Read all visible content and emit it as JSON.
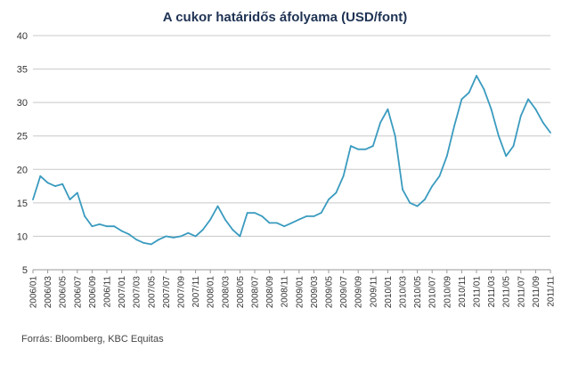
{
  "chart_data": {
    "type": "line",
    "title": "A cukor határidős áfolyama (USD/font)",
    "source": "Forrás: Bloomberg,  KBC Equitas",
    "ylim": [
      5,
      40
    ],
    "yticks": [
      5,
      10,
      15,
      20,
      25,
      30,
      35,
      40
    ],
    "grid": "horizontal",
    "line_color": "#3a9bbf",
    "xticks": [
      "2006/01",
      "2006/03",
      "2006/05",
      "2006/07",
      "2006/09",
      "2006/11",
      "2007/01",
      "2007/03",
      "2007/05",
      "2007/07",
      "2007/09",
      "2007/11",
      "2008/01",
      "2008/03",
      "2008/05",
      "2008/07",
      "2008/09",
      "2008/11",
      "2009/01",
      "2009/03",
      "2009/05",
      "2009/07",
      "2009/09",
      "2009/11",
      "2010/01",
      "2010/03",
      "2010/05",
      "2010/07",
      "2010/09",
      "2010/11",
      "2011/01",
      "2011/03",
      "2011/05",
      "2011/07",
      "2011/09",
      "2011/11"
    ],
    "series": [
      {
        "x": [
          "2006/01",
          "2006/02",
          "2006/03",
          "2006/04",
          "2006/05",
          "2006/06",
          "2006/07",
          "2006/08",
          "2006/09",
          "2006/10",
          "2006/11",
          "2006/12",
          "2007/01",
          "2007/02",
          "2007/03",
          "2007/04",
          "2007/05",
          "2007/06",
          "2007/07",
          "2007/08",
          "2007/09",
          "2007/10",
          "2007/11",
          "2007/12",
          "2008/01",
          "2008/02",
          "2008/03",
          "2008/04",
          "2008/05",
          "2008/06",
          "2008/07",
          "2008/08",
          "2008/09",
          "2008/10",
          "2008/11",
          "2008/12",
          "2009/01",
          "2009/02",
          "2009/03",
          "2009/04",
          "2009/05",
          "2009/06",
          "2009/07",
          "2009/08",
          "2009/09",
          "2009/10",
          "2009/11",
          "2009/12",
          "2010/01",
          "2010/02",
          "2010/03",
          "2010/04",
          "2010/05",
          "2010/06",
          "2010/07",
          "2010/08",
          "2010/09",
          "2010/10",
          "2010/11",
          "2010/12",
          "2011/01",
          "2011/02",
          "2011/03",
          "2011/04",
          "2011/05",
          "2011/06",
          "2011/07",
          "2011/08",
          "2011/09",
          "2011/10",
          "2011/11"
        ],
        "values": [
          15.5,
          19.0,
          18.0,
          17.5,
          17.8,
          15.5,
          16.5,
          13.0,
          11.5,
          11.8,
          11.5,
          11.5,
          10.8,
          10.3,
          9.5,
          9.0,
          8.8,
          9.5,
          10.0,
          9.8,
          10.0,
          10.5,
          10.0,
          11.0,
          12.5,
          14.5,
          12.5,
          11.0,
          10.0,
          13.5,
          13.5,
          13.0,
          12.0,
          12.0,
          11.5,
          12.0,
          12.5,
          13.0,
          13.0,
          13.5,
          15.5,
          16.5,
          19.0,
          23.5,
          23.0,
          23.0,
          23.5,
          27.0,
          29.0,
          25.0,
          17.0,
          15.0,
          14.5,
          15.5,
          17.5,
          19.0,
          22.0,
          26.5,
          30.5,
          31.5,
          34.0,
          32.0,
          29.0,
          25.0,
          22.0,
          23.5,
          28.0,
          30.5,
          29.0,
          27.0,
          25.5
        ]
      }
    ]
  }
}
